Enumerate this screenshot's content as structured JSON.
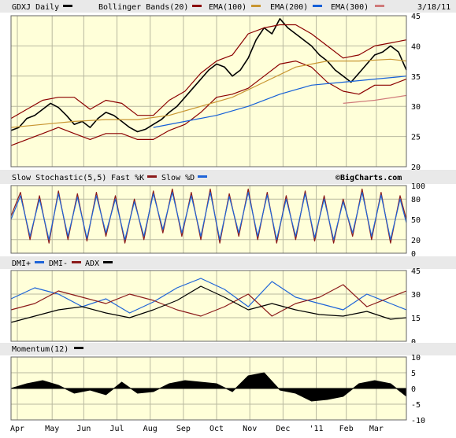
{
  "chart_data": [
    {
      "type": "line",
      "panel": "price",
      "title": "GDXJ Daily",
      "date": "3/18/11",
      "legend": [
        {
          "label": "GDXJ Daily",
          "color": "#000000"
        },
        {
          "label": "Bollinger Bands(20)",
          "color": "#8b0000"
        },
        {
          "label": "EMA(100)",
          "color": "#c89632"
        },
        {
          "label": "EMA(200)",
          "color": "#1560d8"
        },
        {
          "label": "EMA(300)",
          "color": "#d07a7a"
        }
      ],
      "ylim": [
        20,
        45
      ],
      "yticks": [
        "45",
        "40",
        "35",
        "30",
        "25",
        "20"
      ],
      "xticks": [
        "Apr",
        "May",
        "Jun",
        "Jul",
        "Aug",
        "Sep",
        "Oct",
        "Nov",
        "Dec",
        "'11",
        "Feb",
        "Mar"
      ],
      "series": [
        {
          "name": "GDXJ Daily",
          "color": "#000000",
          "x": [
            0,
            5,
            10,
            15,
            20,
            25,
            30,
            35,
            40,
            45,
            50,
            55,
            60,
            65,
            70,
            75,
            80,
            85,
            90,
            95,
            100,
            105,
            110,
            115,
            120,
            125,
            130,
            135,
            140,
            145,
            150,
            155,
            160,
            165,
            170,
            175,
            180,
            185,
            190,
            195,
            200,
            205,
            210,
            215,
            220,
            225,
            230,
            235,
            240,
            245,
            250
          ],
          "values": [
            26,
            26.5,
            28,
            28.5,
            29.5,
            30.5,
            29.8,
            28.5,
            27,
            27.5,
            26.5,
            28,
            29,
            28.5,
            27.5,
            26.5,
            25.8,
            26.2,
            27,
            27.8,
            29,
            30,
            31.5,
            33,
            34.5,
            36,
            37,
            36.5,
            35,
            36,
            38,
            41,
            43,
            42,
            44.5,
            43,
            42,
            41,
            40,
            38.5,
            37.5,
            36,
            35,
            34,
            35.5,
            37,
            38.5,
            39,
            40,
            39,
            36
          ]
        },
        {
          "name": "Bollinger Bands(20)",
          "color": "#8b0000",
          "x": [
            0,
            10,
            20,
            30,
            40,
            50,
            60,
            70,
            80,
            90,
            100,
            110,
            120,
            130,
            140,
            150,
            160,
            170,
            180,
            190,
            200,
            210,
            220,
            230,
            240,
            250
          ],
          "values": [
            28,
            29.5,
            31,
            31.5,
            31.5,
            29.5,
            31,
            30.5,
            28.5,
            28.5,
            31,
            32.5,
            35.5,
            37.5,
            38.5,
            42,
            43,
            43.5,
            43.5,
            42,
            40,
            38,
            38.5,
            40,
            40.5,
            41
          ]
        },
        {
          "name": "Bollinger Bands(20)",
          "color": "#8b0000",
          "x": [
            0,
            10,
            20,
            30,
            40,
            50,
            60,
            70,
            80,
            90,
            100,
            110,
            120,
            130,
            140,
            150,
            160,
            170,
            180,
            190,
            200,
            210,
            220,
            230,
            240,
            250
          ],
          "values": [
            23.5,
            24.5,
            25.5,
            26.5,
            25.5,
            24.5,
            25.5,
            25.5,
            24.5,
            24.5,
            26,
            27,
            29,
            31.5,
            32,
            33,
            35,
            37,
            37.5,
            36.5,
            34,
            32.5,
            32,
            33.5,
            33.5,
            34.5
          ]
        },
        {
          "name": "EMA(100)",
          "color": "#c89632",
          "x": [
            0,
            20,
            40,
            60,
            80,
            100,
            120,
            140,
            160,
            180,
            200,
            220,
            240,
            250
          ],
          "values": [
            26.5,
            27,
            27.5,
            27.8,
            27.8,
            28.5,
            30,
            31.5,
            34,
            36.5,
            37.5,
            37.5,
            37.8,
            37.5
          ]
        },
        {
          "name": "EMA(200)",
          "color": "#1560d8",
          "x": [
            90,
            110,
            130,
            150,
            170,
            190,
            210,
            230,
            250
          ],
          "values": [
            26.5,
            27.5,
            28.5,
            30,
            32,
            33.5,
            34,
            34.5,
            35
          ]
        },
        {
          "name": "EMA(300)",
          "color": "#d07a7a",
          "x": [
            210,
            230,
            250
          ],
          "values": [
            30.5,
            31,
            31.8
          ]
        }
      ]
    },
    {
      "type": "line",
      "panel": "stochastic",
      "title": "Slow Stochastic(5,5)",
      "credit": "©BigCharts.com",
      "legend": [
        {
          "label": "Fast %K",
          "color": "#8b1a1a"
        },
        {
          "label": "Slow %D",
          "color": "#1e64d8"
        }
      ],
      "ylim": [
        0,
        100
      ],
      "yticks": [
        "100",
        "80",
        "50",
        "20",
        "0"
      ],
      "series": [
        {
          "name": "Fast %K",
          "color": "#8b1a1a",
          "x": [
            0,
            6,
            12,
            18,
            24,
            30,
            36,
            42,
            48,
            54,
            60,
            66,
            72,
            78,
            84,
            90,
            96,
            102,
            108,
            114,
            120,
            126,
            132,
            138,
            144,
            150,
            156,
            162,
            168,
            174,
            180,
            186,
            192,
            198,
            204,
            210,
            216,
            222,
            228,
            234,
            240,
            246,
            250
          ],
          "values": [
            55,
            90,
            20,
            85,
            15,
            92,
            20,
            88,
            18,
            90,
            25,
            85,
            15,
            80,
            20,
            92,
            30,
            95,
            25,
            90,
            20,
            95,
            15,
            88,
            25,
            95,
            20,
            90,
            15,
            85,
            20,
            92,
            18,
            85,
            15,
            80,
            25,
            95,
            20,
            90,
            15,
            85,
            50
          ]
        },
        {
          "name": "Slow %D",
          "color": "#1e64d8",
          "x": [
            0,
            6,
            12,
            18,
            24,
            30,
            36,
            42,
            48,
            54,
            60,
            66,
            72,
            78,
            84,
            90,
            96,
            102,
            108,
            114,
            120,
            126,
            132,
            138,
            144,
            150,
            156,
            162,
            168,
            174,
            180,
            186,
            192,
            198,
            204,
            210,
            216,
            222,
            228,
            234,
            240,
            246,
            250
          ],
          "values": [
            50,
            85,
            25,
            80,
            20,
            88,
            25,
            83,
            22,
            85,
            30,
            80,
            20,
            76,
            25,
            88,
            35,
            90,
            30,
            85,
            25,
            90,
            20,
            84,
            30,
            90,
            25,
            86,
            20,
            80,
            25,
            88,
            23,
            80,
            20,
            76,
            30,
            90,
            25,
            86,
            20,
            80,
            45
          ]
        }
      ]
    },
    {
      "type": "line",
      "panel": "dmi",
      "legend": [
        {
          "label": "DMI+",
          "color": "#1e64d8"
        },
        {
          "label": "DMI-",
          "color": "#8b1a1a"
        },
        {
          "label": "ADX",
          "color": "#000000"
        }
      ],
      "ylim": [
        0,
        45
      ],
      "yticks": [
        "45",
        "30",
        "15",
        "0"
      ],
      "series": [
        {
          "name": "DMI+",
          "color": "#1e64d8",
          "x": [
            0,
            15,
            30,
            45,
            60,
            75,
            90,
            105,
            120,
            135,
            150,
            165,
            180,
            195,
            210,
            225,
            240,
            250
          ],
          "values": [
            27,
            34,
            30,
            22,
            27,
            18,
            25,
            34,
            40,
            33,
            22,
            38,
            28,
            24,
            20,
            30,
            24,
            20
          ]
        },
        {
          "name": "DMI-",
          "color": "#8b1a1a",
          "x": [
            0,
            15,
            30,
            45,
            60,
            75,
            90,
            105,
            120,
            135,
            150,
            165,
            180,
            195,
            210,
            225,
            240,
            250
          ],
          "values": [
            20,
            24,
            32,
            28,
            24,
            30,
            26,
            20,
            16,
            22,
            30,
            16,
            24,
            28,
            36,
            22,
            28,
            32
          ]
        },
        {
          "name": "ADX",
          "color": "#000000",
          "x": [
            0,
            15,
            30,
            45,
            60,
            75,
            90,
            105,
            120,
            135,
            150,
            165,
            180,
            195,
            210,
            225,
            240,
            250
          ],
          "values": [
            12,
            16,
            20,
            22,
            18,
            15,
            20,
            26,
            35,
            28,
            20,
            24,
            20,
            17,
            16,
            19,
            14,
            15
          ]
        }
      ]
    },
    {
      "type": "area",
      "panel": "momentum",
      "legend": [
        {
          "label": "Momentum(12)",
          "color": "#000000"
        }
      ],
      "ylim": [
        -10,
        10
      ],
      "yticks": [
        "10",
        "5",
        "0",
        "-5",
        "-10"
      ],
      "series": [
        {
          "name": "Momentum(12)",
          "color": "#000000",
          "x": [
            0,
            10,
            20,
            30,
            40,
            50,
            60,
            70,
            80,
            90,
            100,
            110,
            120,
            130,
            140,
            150,
            160,
            170,
            180,
            190,
            200,
            210,
            220,
            230,
            240,
            250
          ],
          "values": [
            0,
            1.5,
            2.5,
            1,
            -1.5,
            -0.5,
            -2,
            2,
            -1.5,
            -1,
            1.5,
            2.5,
            2,
            1.5,
            -1,
            4,
            5,
            -0.5,
            -1.5,
            -4,
            -3.5,
            -2.5,
            1.5,
            2.5,
            1.5,
            -2.5
          ]
        }
      ]
    }
  ]
}
